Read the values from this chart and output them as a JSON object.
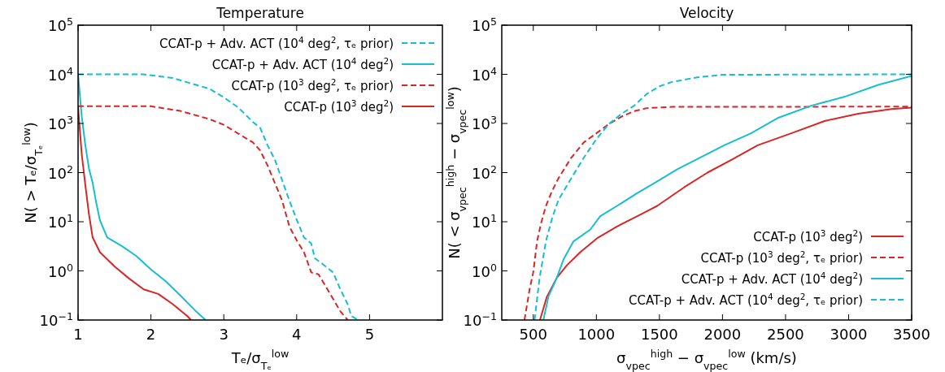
{
  "chart_data": [
    {
      "type": "line",
      "title": "Temperature",
      "xlabel": "Tₑ/σ$_{Tₑ}$$^{low}$",
      "ylabel": "N( > Tₑ/σ$_{Tₑ}$$^{low}$)",
      "log": "y",
      "legend": "top right",
      "xlim": [
        1,
        6
      ],
      "xticks": [
        1,
        2,
        3,
        4,
        5
      ],
      "ylim": [
        0.1,
        100000
      ],
      "yticks": [
        {
          "value": 0.1,
          "label": "10$^{−1}$"
        },
        {
          "value": 1,
          "label": "10$^{0}$"
        },
        {
          "value": 10,
          "label": "10$^{1}$"
        },
        {
          "value": 100,
          "label": "10$^{2}$"
        },
        {
          "value": 1000,
          "label": "10$^{3}$"
        },
        {
          "value": 10000,
          "label": "10$^{4}$"
        },
        {
          "value": 100000,
          "label": "10$^{5}$"
        }
      ],
      "grid": false,
      "series": [
        {
          "name": "CCAT-p + Adv. ACT (10$^{4}$ deg$^{2}$, τₑ prior)",
          "color": "#17becf",
          "line_style": "dashed",
          "x": [
            1,
            1.9,
            2.3,
            2.6,
            2.8,
            3.0,
            3.2,
            3.4,
            3.5,
            3.6,
            3.7,
            3.8,
            3.9,
            4.0,
            4.1,
            4.2,
            4.25,
            4.35,
            4.5,
            4.6,
            4.7,
            4.75,
            4.85
          ],
          "values": [
            10000,
            10000,
            8400,
            6200,
            5100,
            3400,
            2100,
            1070,
            810,
            360,
            185,
            70,
            27,
            11,
            4.8,
            3.6,
            1.8,
            1.4,
            0.93,
            0.42,
            0.21,
            0.12,
            0.1
          ]
        },
        {
          "name": "CCAT-p + Adv. ACT (10$^{4}$ deg$^{2}$)",
          "color": "#17becf",
          "line_style": "solid",
          "x": [
            1.0,
            1.05,
            1.1,
            1.15,
            1.2,
            1.25,
            1.3,
            1.4,
            1.6,
            1.8,
            2.0,
            2.2,
            2.4,
            2.6,
            2.75
          ],
          "values": [
            10000,
            1400,
            360,
            120,
            62,
            24,
            10.7,
            4.8,
            3.2,
            2,
            1.07,
            0.62,
            0.32,
            0.16,
            0.1
          ]
        },
        {
          "name": "CCAT-p (10$^{3}$ deg$^{2}$, τₑ prior)",
          "color": "#d62728",
          "line_style": "dashed",
          "x": [
            1,
            2.0,
            2.4,
            2.8,
            3.0,
            3.2,
            3.4,
            3.5,
            3.6,
            3.7,
            3.8,
            3.9,
            4.0,
            4.1,
            4.2,
            4.3,
            4.4,
            4.5,
            4.6,
            4.7
          ],
          "values": [
            2240,
            2240,
            1800,
            1230,
            940,
            620,
            410,
            280,
            140,
            62,
            27,
            8,
            4.2,
            2.4,
            0.93,
            0.85,
            0.48,
            0.27,
            0.15,
            0.1
          ]
        },
        {
          "name": "CCAT-p (10$^{3}$ deg$^{2}$)",
          "color": "#d62728",
          "line_style": "solid",
          "x": [
            1,
            1.05,
            1.1,
            1.15,
            1.2,
            1.3,
            1.5,
            1.7,
            1.9,
            2.1,
            2.3,
            2.5,
            2.55
          ],
          "values": [
            2200,
            240,
            55,
            14,
            4.8,
            2.4,
            1.23,
            0.7,
            0.42,
            0.34,
            0.21,
            0.12,
            0.1
          ]
        }
      ]
    },
    {
      "type": "line",
      "title": "Velocity",
      "xlabel": "σ$_{vpec}$$^{high}$ − σ$_{vpec}$$^{low}$ (km/s)",
      "ylabel": "N( < σ$_{vpec}$$^{high}$ − σ$_{vpec}$$^{low}$)",
      "log": "y",
      "legend": "bottom right",
      "xlim": [
        250,
        3500
      ],
      "xticks": [
        500,
        1000,
        1500,
        2000,
        2500,
        3000,
        3500
      ],
      "ylim": [
        0.1,
        100000
      ],
      "yticks": [
        {
          "value": 0.1,
          "label": "10$^{−1}$"
        },
        {
          "value": 1,
          "label": "10$^{0}$"
        },
        {
          "value": 10,
          "label": "10$^{1}$"
        },
        {
          "value": 100,
          "label": "10$^{2}$"
        },
        {
          "value": 1000,
          "label": "10$^{3}$"
        },
        {
          "value": 10000,
          "label": "10$^{4}$"
        },
        {
          "value": 100000,
          "label": "10$^{5}$"
        }
      ],
      "grid": false,
      "series": [
        {
          "name": "CCAT-p (10$^{3}$ deg$^{2}$)",
          "color": "#d62728",
          "line_style": "solid",
          "x": [
            553,
            606,
            686,
            766,
            872,
            1005,
            1164,
            1350,
            1482,
            1695,
            1881,
            2067,
            2279,
            2545,
            2810,
            3076,
            3341,
            3500
          ],
          "values": [
            0.1,
            0.29,
            0.72,
            1.3,
            2.4,
            4.6,
            8,
            14,
            21,
            50,
            100,
            180,
            360,
            630,
            1120,
            1580,
            1970,
            2100
          ]
        },
        {
          "name": "CCAT-p (10$^{3}$ deg$^{2}$, τₑ prior)",
          "color": "#d62728",
          "line_style": "dashed",
          "x": [
            430,
            470,
            500,
            530,
            560,
            600,
            650,
            700,
            800,
            900,
            1000,
            1100,
            1200,
            1300,
            1400,
            1600,
            3500
          ],
          "values": [
            0.1,
            0.41,
            0.95,
            4,
            9,
            21,
            43,
            77,
            200,
            410,
            630,
            980,
            1380,
            1780,
            2050,
            2180,
            2200
          ]
        },
        {
          "name": "CCAT-p + Adv. ACT (10$^{4}$ deg$^{2}$)",
          "color": "#17becf",
          "line_style": "solid",
          "x": [
            580,
            620,
            686,
            739,
            819,
            951,
            1031,
            1164,
            1323,
            1482,
            1642,
            1828,
            2014,
            2226,
            2438,
            2704,
            2969,
            3235,
            3500
          ],
          "values": [
            0.1,
            0.3,
            0.72,
            1.7,
            4,
            6.9,
            13,
            21,
            38,
            66,
            117,
            205,
            360,
            630,
            1290,
            2300,
            3500,
            6100,
            9300
          ]
        },
        {
          "name": "CCAT-p + Adv. ACT (10$^{4}$ deg$^{2}$, τₑ prior)",
          "color": "#17becf",
          "line_style": "dashed",
          "x": [
            510,
            550,
            600,
            650,
            700,
            800,
            900,
            1000,
            1100,
            1200,
            1300,
            1400,
            1500,
            1600,
            1800,
            2000,
            3500
          ],
          "values": [
            0.1,
            0.72,
            4,
            12,
            28,
            76,
            200,
            480,
            980,
            1580,
            2300,
            4000,
            5700,
            7000,
            8700,
            9800,
            10000
          ]
        }
      ]
    }
  ]
}
